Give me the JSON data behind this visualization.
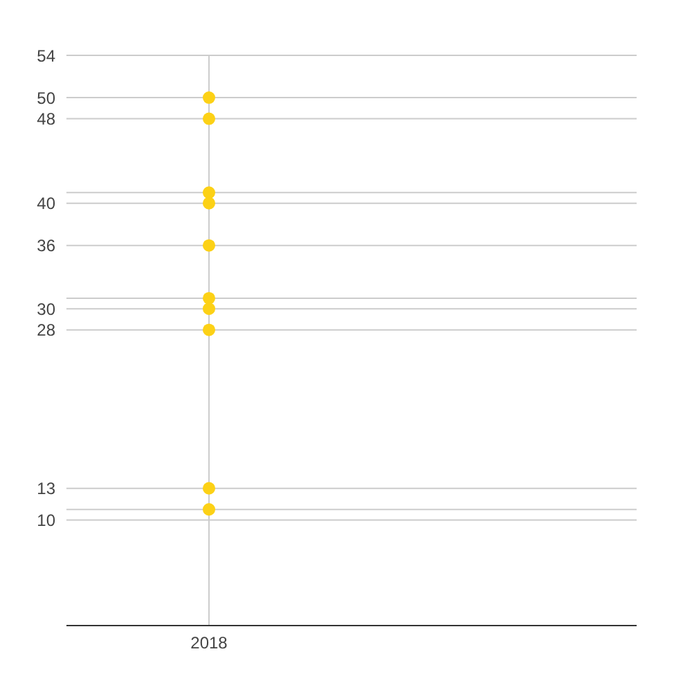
{
  "chart_data": {
    "type": "scatter",
    "categories": [
      "2018",
      null
    ],
    "series": [
      {
        "color": "#fcd116",
        "values": [
          50,
          null
        ]
      },
      {
        "color": "#fcd116",
        "values": [
          48,
          null
        ]
      },
      {
        "color": "#fcd116",
        "values": [
          41,
          null
        ]
      },
      {
        "color": "#fcd116",
        "values": [
          40,
          null
        ]
      },
      {
        "color": "#fcd116",
        "values": [
          36,
          null
        ]
      },
      {
        "color": "#fcd116",
        "values": [
          31,
          null
        ]
      },
      {
        "color": "#fcd116",
        "values": [
          30,
          null
        ]
      },
      {
        "color": "#fcd116",
        "values": [
          28,
          null
        ]
      },
      {
        "color": "#fcd116",
        "values": [
          13,
          null
        ]
      },
      {
        "color": "#fcd116",
        "values": [
          11,
          null
        ]
      }
    ],
    "marker": "circle",
    "ylim": [
      0,
      54
    ],
    "yticks": [
      10,
      {
        "value": 11,
        "label": null
      },
      13,
      28,
      30,
      {
        "value": 31,
        "label": null
      },
      36,
      40,
      {
        "value": 41,
        "label": null
      },
      48,
      50,
      54
    ],
    "grid": true
  }
}
